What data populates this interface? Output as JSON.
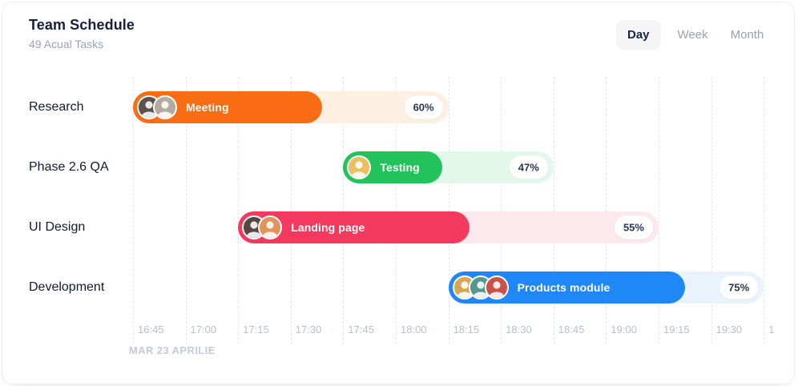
{
  "header": {
    "title": "Team Schedule",
    "subtitle": "49 Acual Tasks"
  },
  "view_toggle": {
    "options": [
      {
        "label": "Day",
        "active": true
      },
      {
        "label": "Week",
        "active": false
      },
      {
        "label": "Month",
        "active": false
      }
    ]
  },
  "timeline": {
    "start": "16:45",
    "minutes_per_tick": 15,
    "ticks": [
      "16:45",
      "17:00",
      "17:15",
      "17:30",
      "17:45",
      "18:00",
      "18:15",
      "18:30",
      "18:45",
      "19:00",
      "19:15",
      "19:30",
      "1"
    ],
    "date_label": "MAR 23 APRILIE"
  },
  "rows": [
    {
      "label": "Research",
      "task": {
        "name": "Meeting",
        "start": "16:45",
        "end": "18:15",
        "percent_value": 60,
        "percent_label": "60%",
        "color": "#FA6D15",
        "track_color": "#FDF0E3",
        "avatars": [
          {
            "bg": "#5E514C"
          },
          {
            "bg": "#B3AB9F"
          }
        ]
      }
    },
    {
      "label": "Phase 2.6 QA",
      "task": {
        "name": "Testing",
        "start": "17:45",
        "end": "18:45",
        "percent_value": 47,
        "percent_label": "47%",
        "color": "#22C35B",
        "track_color": "#E3F8EA",
        "avatars": [
          {
            "bg": "#E9C05F"
          }
        ]
      }
    },
    {
      "label": "UI Design",
      "task": {
        "name": "Landing page",
        "start": "17:15",
        "end": "19:15",
        "percent_value": 55,
        "percent_label": "55%",
        "color": "#F4395F",
        "track_color": "#FDE8EE",
        "avatars": [
          {
            "bg": "#55463F"
          },
          {
            "bg": "#E2925B"
          }
        ]
      }
    },
    {
      "label": "Development",
      "task": {
        "name": "Products module",
        "start": "18:15",
        "end": "19:45",
        "percent_value": 75,
        "percent_label": "75%",
        "color": "#2087F8",
        "track_color": "#EAF3FC",
        "avatars": [
          {
            "bg": "#D3A755"
          },
          {
            "bg": "#57968F"
          },
          {
            "bg": "#C8514A"
          }
        ]
      }
    }
  ]
}
